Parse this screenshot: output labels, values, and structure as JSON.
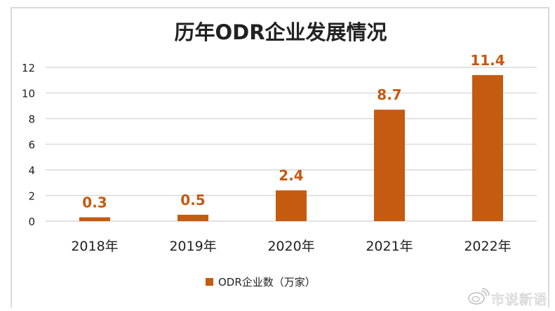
{
  "chart_data": {
    "type": "bar",
    "title": "历年ODR企业发展情况",
    "categories": [
      "2018年",
      "2019年",
      "2020年",
      "2021年",
      "2022年"
    ],
    "series": [
      {
        "name": "ODR企业数（万家）",
        "values": [
          0.3,
          0.5,
          2.4,
          8.7,
          11.4
        ],
        "color": "#c55a11"
      }
    ],
    "data_labels": [
      "0.3",
      "0.5",
      "2.4",
      "8.7",
      "11.4"
    ],
    "ylim": [
      0,
      12
    ],
    "yticks": [
      "0",
      "2",
      "4",
      "6",
      "8",
      "10",
      "12"
    ],
    "grid": true,
    "legend": "bottom",
    "label_color": "#c55a11"
  },
  "watermark": {
    "text": "市说新语",
    "icon": "weibo-icon"
  }
}
